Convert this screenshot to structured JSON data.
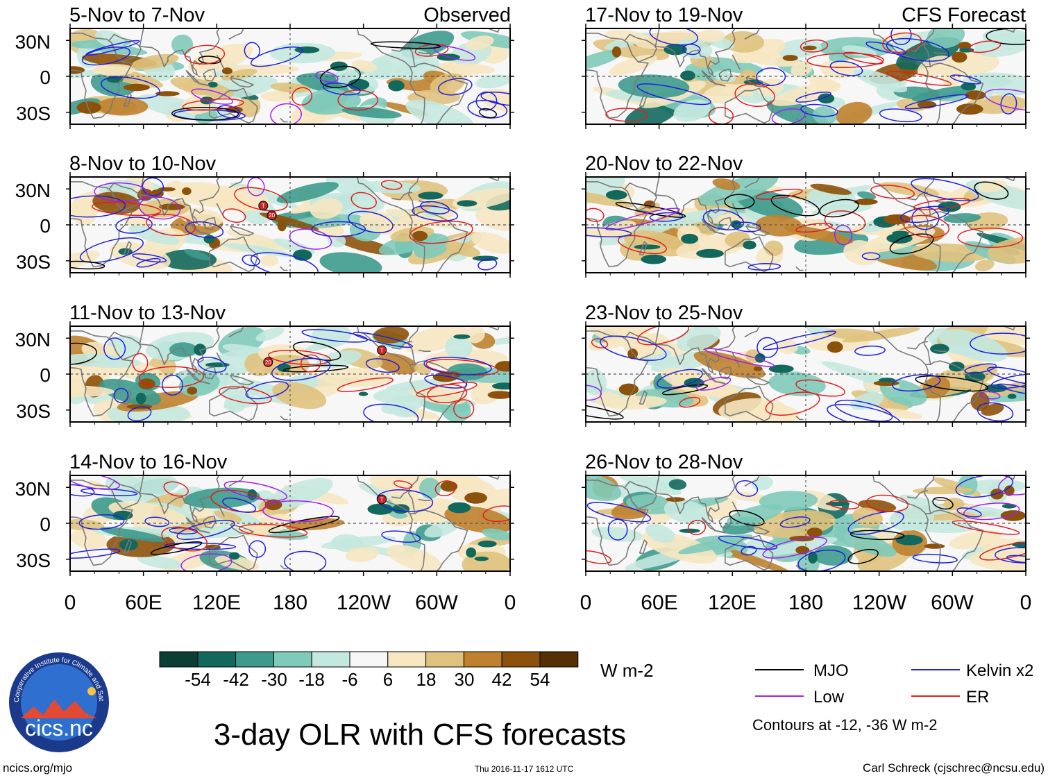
{
  "colors": {
    "mjo": "#000000",
    "kelvin": "#1f1fe0",
    "low": "#a020f0",
    "er": "#e01f1f",
    "coast": "#7a7a7a",
    "zeroline": "#555555",
    "logo_ring": "#1b3a8c",
    "logo_inner": "#2f6fd0",
    "shading": [
      "#0b3f33",
      "#13685d",
      "#3d9a8d",
      "#7fcab9",
      "#c4e8df",
      "#f7f7f7",
      "#f6e7c1",
      "#dfc27d",
      "#bf812d",
      "#8c510a",
      "#543005"
    ]
  },
  "panels": [
    {
      "id": "p1",
      "title": "5-Nov to 7-Nov",
      "tag": "Observed",
      "seed": 11
    },
    {
      "id": "p2",
      "title": "17-Nov to 19-Nov",
      "tag": "CFS Forecast",
      "seed": 23
    },
    {
      "id": "p3",
      "title": "8-Nov to 10-Nov",
      "tag": "",
      "seed": 37
    },
    {
      "id": "p4",
      "title": "20-Nov to 22-Nov",
      "tag": "",
      "seed": 41
    },
    {
      "id": "p5",
      "title": "11-Nov to 13-Nov",
      "tag": "",
      "seed": 53
    },
    {
      "id": "p6",
      "title": "23-Nov to 25-Nov",
      "tag": "",
      "seed": 67
    },
    {
      "id": "p7",
      "title": "14-Nov to 16-Nov",
      "tag": "",
      "seed": 71
    },
    {
      "id": "p8",
      "title": "26-Nov to 28-Nov",
      "tag": "",
      "seed": 89
    }
  ],
  "lat_ticks": [
    "30N",
    "0",
    "30S"
  ],
  "lon_ticks": [
    "0",
    "60E",
    "120E",
    "180",
    "120W",
    "60W",
    "0"
  ],
  "storm_markers": [
    {
      "panel": "p3",
      "lon": 158,
      "lat": 16,
      "label": "T"
    },
    {
      "panel": "p3",
      "lon": 165,
      "lat": 8,
      "label": "20"
    },
    {
      "panel": "p5",
      "lon": 162,
      "lat": 10,
      "label": "20"
    },
    {
      "panel": "p5",
      "lon": 255,
      "lat": 20,
      "label": "T"
    },
    {
      "panel": "p7",
      "lon": 255,
      "lat": 20,
      "label": "T"
    }
  ],
  "colorbar": {
    "labels": [
      "-54",
      "-42",
      "-30",
      "-18",
      "-6",
      "6",
      "18",
      "30",
      "42",
      "54"
    ],
    "units": "W m-2"
  },
  "legend": {
    "items": [
      {
        "label": "MJO",
        "color_key": "mjo"
      },
      {
        "label": "Kelvin x2",
        "color_key": "kelvin"
      },
      {
        "label": "Low",
        "color_key": "low"
      },
      {
        "label": "ER",
        "color_key": "er"
      }
    ],
    "note": "Contours at -12, -36 W m-2"
  },
  "logo_text": "cics.nc",
  "logo_ring_text": "Cooperative Institute for Climate and Satellites",
  "main_title": "3-day OLR with CFS forecasts",
  "footer": {
    "left": "ncics.org/mjo",
    "center": "Thu 2016-11-17 1612 UTC",
    "right": "Carl Schreck (cjschrec@ncsu.edu)"
  }
}
